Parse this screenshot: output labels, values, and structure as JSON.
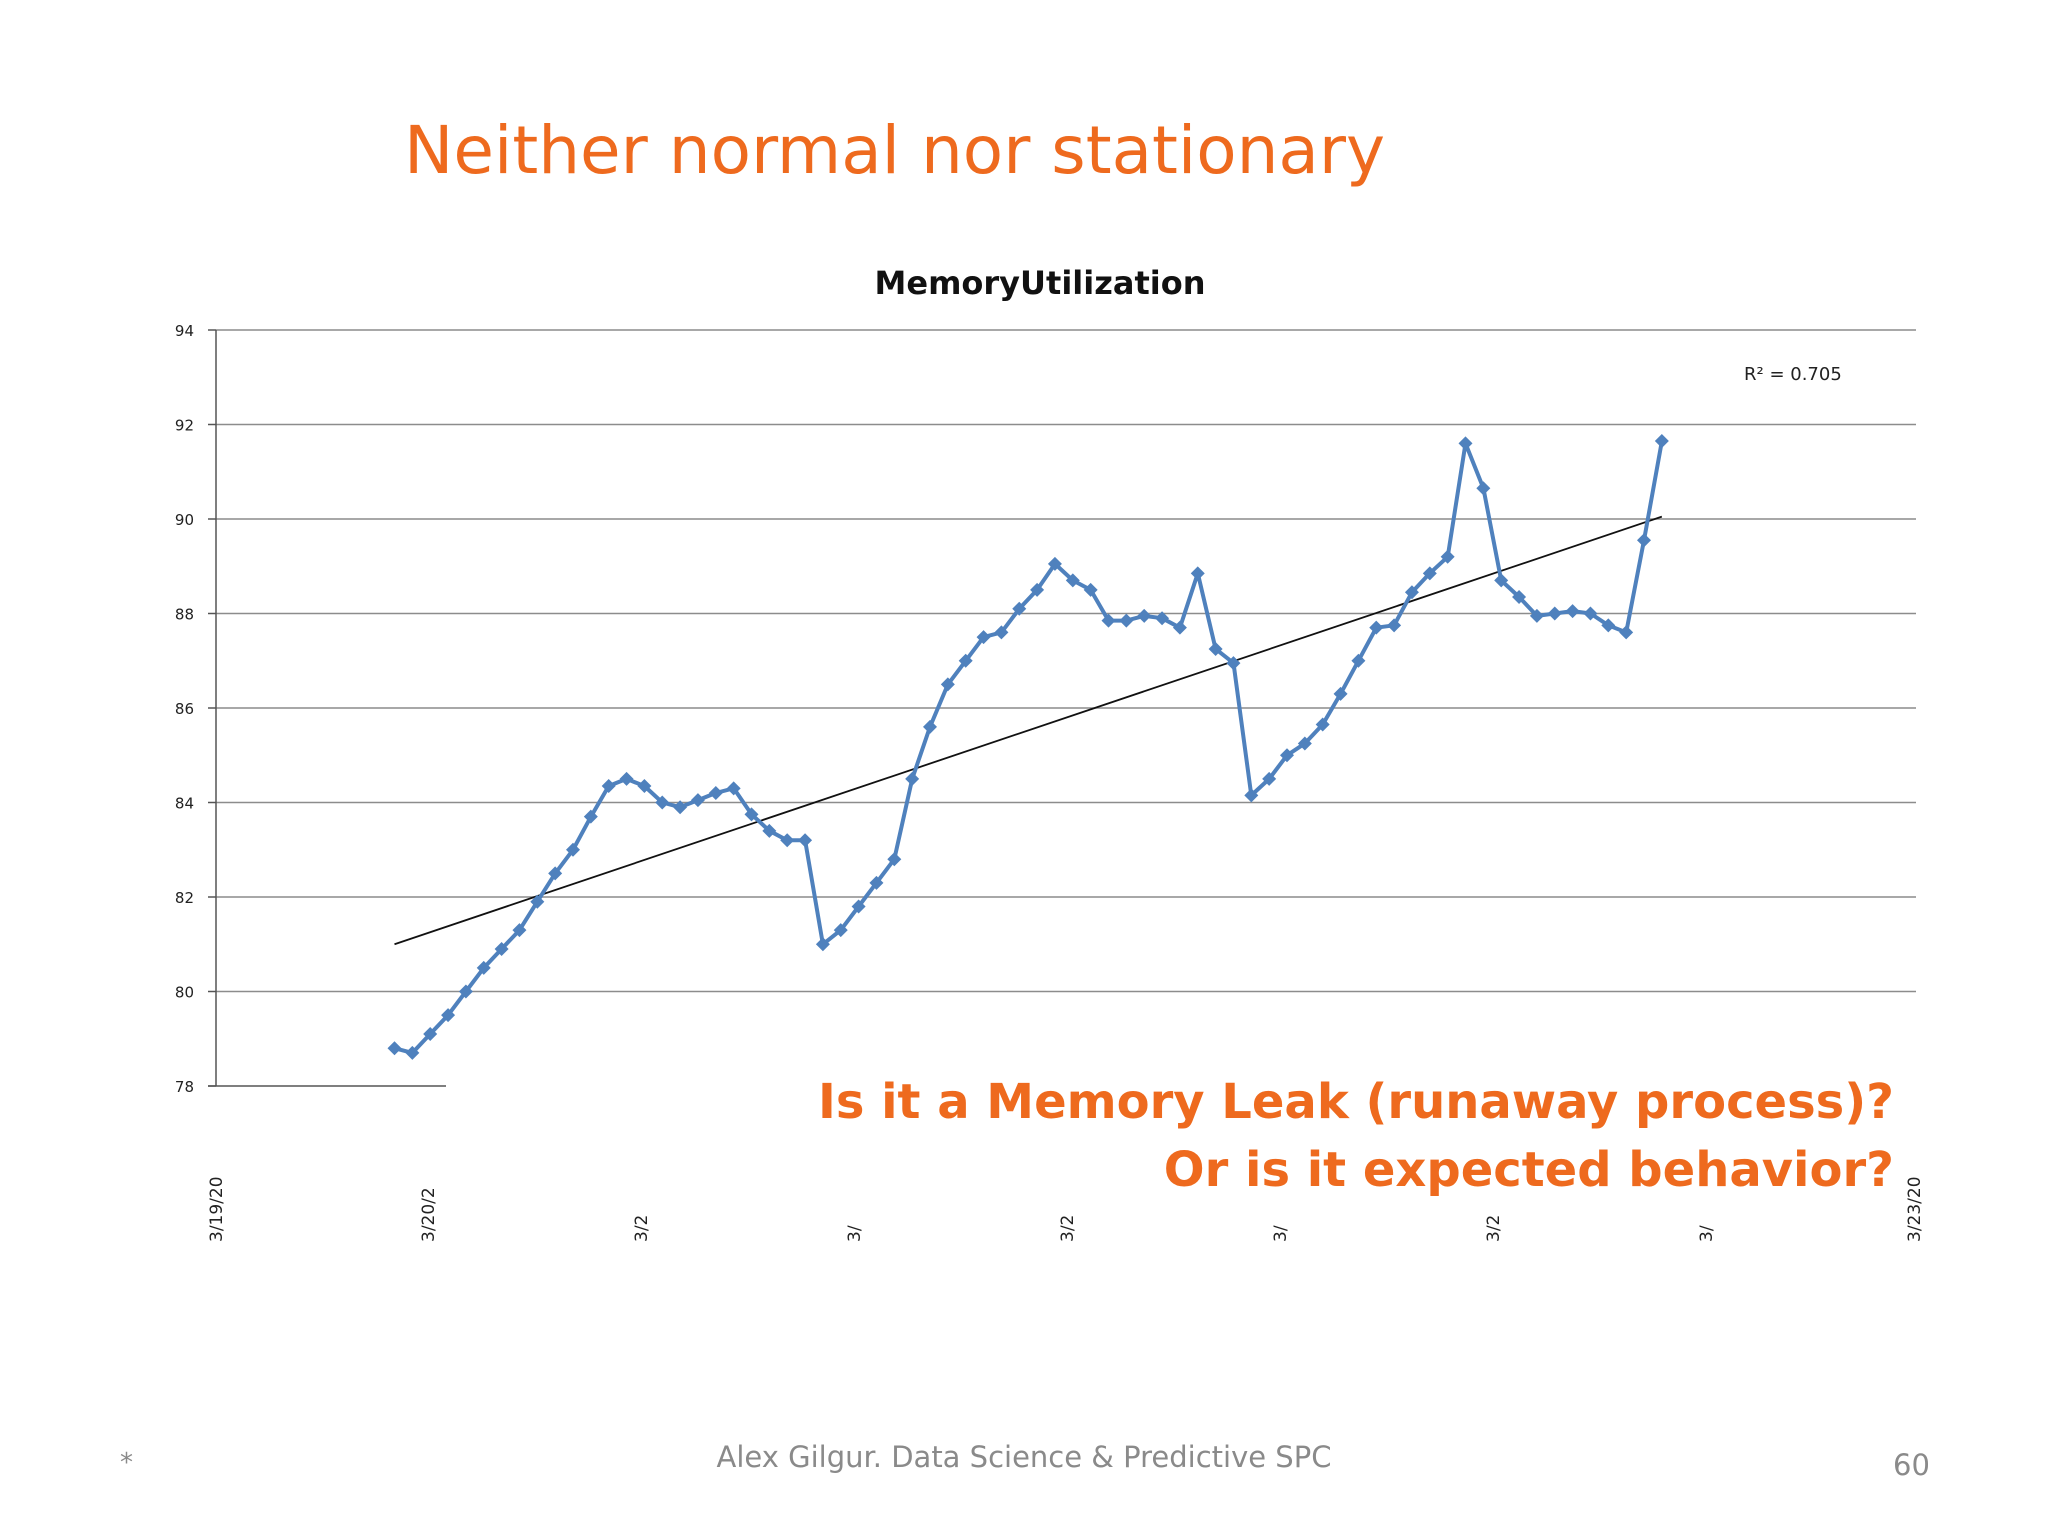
{
  "slide": {
    "title": "Neither normal nor stationary",
    "callout_line1": "Is it a Memory Leak (runaway process)?",
    "callout_line2": "Or is it expected behavior?",
    "footer_star": "*",
    "footer_text": "Alex Gilgur.  Data Science & Predictive SPC",
    "page_number": "60",
    "accent_color": "#ee6a1e"
  },
  "chart_data": {
    "type": "line",
    "title": "MemoryUtilization",
    "xlabel": "",
    "ylabel": "",
    "ylim": [
      78,
      94
    ],
    "yticks": [
      "78",
      "80",
      "82",
      "84",
      "86",
      "88",
      "90",
      "92",
      "94"
    ],
    "xtick_labels": [
      "3/19/20",
      "3/20/2",
      "3/2",
      "3/",
      "3/2",
      "3/",
      "3/2",
      "3/",
      "3/23/20"
    ],
    "grid": true,
    "series_color": "#4f81bd",
    "series": [
      {
        "name": "MemoryUtilization",
        "x_start": 10,
        "values": [
          78.8,
          78.7,
          79.1,
          79.5,
          80.0,
          80.5,
          80.9,
          81.3,
          81.9,
          82.5,
          83.0,
          83.7,
          84.35,
          84.5,
          84.35,
          84.0,
          83.9,
          84.05,
          84.2,
          84.3,
          83.75,
          83.4,
          83.2,
          83.2,
          81.0,
          81.3,
          81.8,
          82.3,
          82.8,
          84.5,
          85.6,
          86.5,
          87.0,
          87.5,
          87.6,
          88.1,
          88.5,
          89.05,
          88.7,
          88.5,
          87.85,
          87.85,
          87.95,
          87.9,
          87.7,
          88.85,
          87.25,
          86.95,
          84.15,
          84.5,
          85.0,
          85.25,
          85.65,
          86.3,
          87.0,
          87.7,
          87.75,
          88.45,
          88.85,
          89.2,
          91.6,
          90.65,
          88.7,
          88.35,
          87.95,
          88.0,
          88.05,
          88.0,
          87.75,
          87.6,
          89.55,
          91.65
        ]
      }
    ],
    "trendline": {
      "type": "linear",
      "start_value": 81.0,
      "end_value": 90.05,
      "r_squared_label": "R² = 0.705"
    }
  }
}
